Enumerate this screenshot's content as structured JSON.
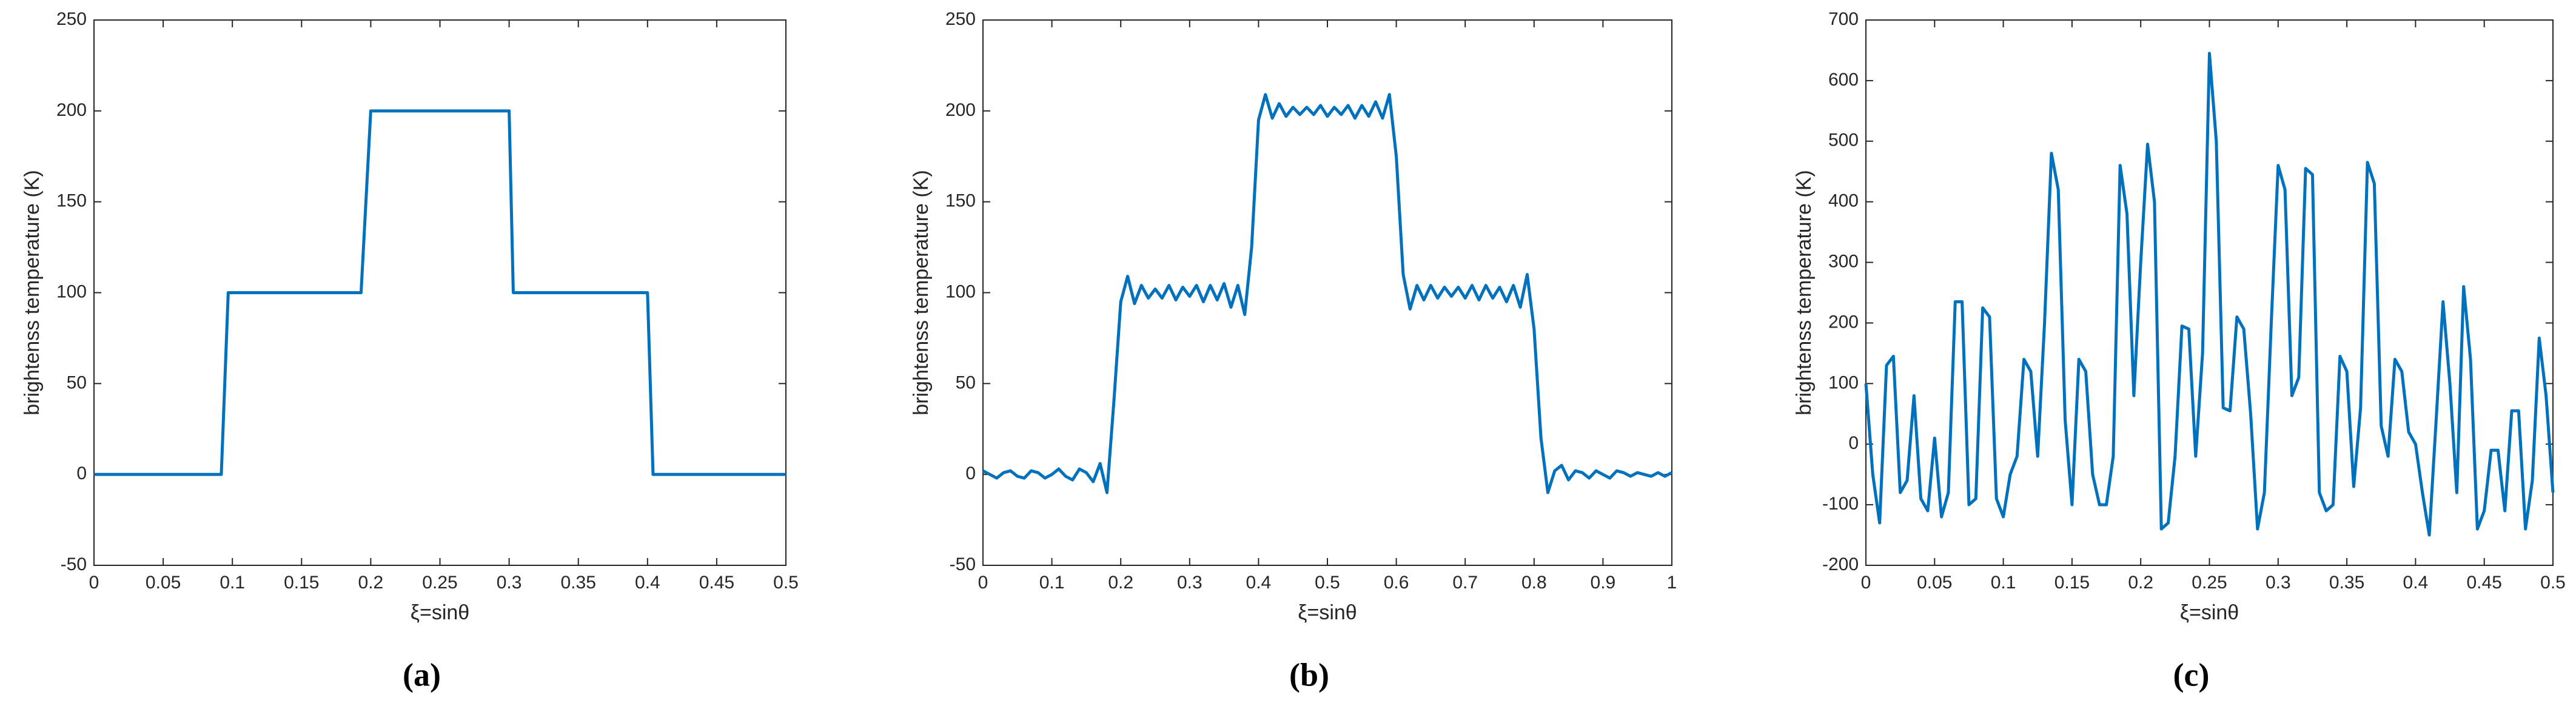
{
  "chart_data": [
    {
      "type": "line",
      "caption": "(a)",
      "xlabel": "ξ=sinθ",
      "ylabel": "brightenss temperature (K)",
      "xlim": [
        0,
        0.5
      ],
      "xticks": [
        0,
        0.05,
        0.1,
        0.15,
        0.2,
        0.25,
        0.3,
        0.35,
        0.4,
        0.45,
        0.5
      ],
      "ylim": [
        -50,
        250
      ],
      "yticks": [
        -50,
        0,
        50,
        100,
        150,
        200,
        250
      ],
      "series": [
        {
          "color": "#0072bd",
          "x": [
            0,
            0.092,
            0.097,
            0.193,
            0.2,
            0.3,
            0.303,
            0.4,
            0.404,
            0.5
          ],
          "values": [
            0,
            0,
            100,
            100,
            200,
            200,
            100,
            100,
            0,
            0
          ]
        }
      ]
    },
    {
      "type": "line",
      "caption": "(b)",
      "xlabel": "ξ=sinθ",
      "ylabel": "brightenss temperature (K)",
      "xlim": [
        0,
        1
      ],
      "xticks": [
        0,
        0.1,
        0.2,
        0.3,
        0.4,
        0.5,
        0.6,
        0.7,
        0.8,
        0.9,
        1
      ],
      "ylim": [
        -50,
        250
      ],
      "yticks": [
        -50,
        0,
        50,
        100,
        150,
        200,
        250
      ],
      "series": [
        {
          "color": "#0072bd",
          "x": [
            0,
            0.01,
            0.02,
            0.03,
            0.04,
            0.05,
            0.06,
            0.07,
            0.08,
            0.09,
            0.1,
            0.11,
            0.12,
            0.13,
            0.14,
            0.15,
            0.16,
            0.17,
            0.18,
            0.19,
            0.2,
            0.21,
            0.22,
            0.23,
            0.24,
            0.25,
            0.26,
            0.27,
            0.28,
            0.29,
            0.3,
            0.31,
            0.32,
            0.33,
            0.34,
            0.35,
            0.36,
            0.37,
            0.38,
            0.39,
            0.4,
            0.41,
            0.42,
            0.43,
            0.44,
            0.45,
            0.46,
            0.47,
            0.48,
            0.49,
            0.5,
            0.51,
            0.52,
            0.53,
            0.54,
            0.55,
            0.56,
            0.57,
            0.58,
            0.59,
            0.6,
            0.61,
            0.62,
            0.63,
            0.64,
            0.65,
            0.66,
            0.67,
            0.68,
            0.69,
            0.7,
            0.71,
            0.72,
            0.73,
            0.74,
            0.75,
            0.76,
            0.77,
            0.78,
            0.79,
            0.8,
            0.81,
            0.82,
            0.83,
            0.84,
            0.85,
            0.86,
            0.87,
            0.88,
            0.89,
            0.9,
            0.91,
            0.92,
            0.93,
            0.94,
            0.95,
            0.96,
            0.97,
            0.98,
            0.99,
            1
          ],
          "values": [
            2,
            0,
            -2,
            1,
            2,
            -1,
            -2,
            2,
            1,
            -2,
            0,
            3,
            -1,
            -3,
            3,
            1,
            -4,
            6,
            -10,
            40,
            95,
            109,
            94,
            104,
            97,
            102,
            97,
            104,
            96,
            103,
            98,
            104,
            95,
            104,
            96,
            105,
            92,
            104,
            88,
            125,
            195,
            209,
            196,
            204,
            197,
            202,
            198,
            202,
            198,
            203,
            197,
            202,
            198,
            203,
            196,
            203,
            197,
            205,
            196,
            209,
            175,
            110,
            91,
            104,
            96,
            104,
            97,
            103,
            98,
            103,
            97,
            104,
            96,
            104,
            97,
            103,
            95,
            104,
            92,
            110,
            80,
            20,
            -10,
            2,
            5,
            -3,
            2,
            1,
            -2,
            2,
            0,
            -2,
            2,
            1,
            -1,
            1,
            0,
            -1,
            1,
            -1,
            1
          ]
        }
      ]
    },
    {
      "type": "line",
      "caption": "(c)",
      "xlabel": "ξ=sinθ",
      "ylabel": "brightenss temperature (K)",
      "xlim": [
        0,
        0.5
      ],
      "xticks": [
        0,
        0.05,
        0.1,
        0.15,
        0.2,
        0.25,
        0.3,
        0.35,
        0.4,
        0.45,
        0.5
      ],
      "ylim": [
        -200,
        700
      ],
      "yticks": [
        -200,
        -100,
        0,
        100,
        200,
        300,
        400,
        500,
        600,
        700
      ],
      "series": [
        {
          "color": "#0072bd",
          "x": [
            0,
            0.005,
            0.01,
            0.015,
            0.02,
            0.025,
            0.03,
            0.035,
            0.04,
            0.045,
            0.05,
            0.055,
            0.06,
            0.065,
            0.07,
            0.075,
            0.08,
            0.085,
            0.09,
            0.095,
            0.1,
            0.105,
            0.11,
            0.115,
            0.12,
            0.125,
            0.13,
            0.135,
            0.14,
            0.145,
            0.15,
            0.155,
            0.16,
            0.165,
            0.17,
            0.175,
            0.18,
            0.185,
            0.19,
            0.195,
            0.2,
            0.205,
            0.21,
            0.215,
            0.22,
            0.225,
            0.23,
            0.235,
            0.24,
            0.245,
            0.25,
            0.255,
            0.26,
            0.265,
            0.27,
            0.275,
            0.28,
            0.285,
            0.29,
            0.295,
            0.3,
            0.305,
            0.31,
            0.315,
            0.32,
            0.325,
            0.33,
            0.335,
            0.34,
            0.345,
            0.35,
            0.355,
            0.36,
            0.365,
            0.37,
            0.375,
            0.38,
            0.385,
            0.39,
            0.395,
            0.4,
            0.405,
            0.41,
            0.415,
            0.42,
            0.425,
            0.43,
            0.435,
            0.44,
            0.445,
            0.45,
            0.455,
            0.46,
            0.465,
            0.47,
            0.475,
            0.48,
            0.485,
            0.49,
            0.495,
            0.5
          ],
          "values": [
            100,
            -50,
            -130,
            130,
            145,
            -80,
            -60,
            80,
            -90,
            -110,
            10,
            -120,
            -80,
            235,
            235,
            -100,
            -90,
            225,
            210,
            -90,
            -120,
            -50,
            -20,
            140,
            120,
            -20,
            200,
            480,
            420,
            40,
            -100,
            140,
            120,
            -50,
            -100,
            -100,
            -20,
            460,
            380,
            80,
            300,
            495,
            400,
            -140,
            -130,
            -20,
            195,
            190,
            -20,
            150,
            645,
            500,
            60,
            55,
            210,
            190,
            50,
            -140,
            -80,
            200,
            460,
            420,
            80,
            110,
            455,
            445,
            -80,
            -110,
            -100,
            145,
            120,
            -70,
            60,
            465,
            430,
            30,
            -20,
            140,
            120,
            20,
            0,
            -80,
            -150,
            40,
            235,
            100,
            -80,
            260,
            140,
            -140,
            -110,
            -10,
            -10,
            -110,
            55,
            55,
            -140,
            -60,
            175,
            80,
            -80
          ]
        }
      ]
    }
  ]
}
